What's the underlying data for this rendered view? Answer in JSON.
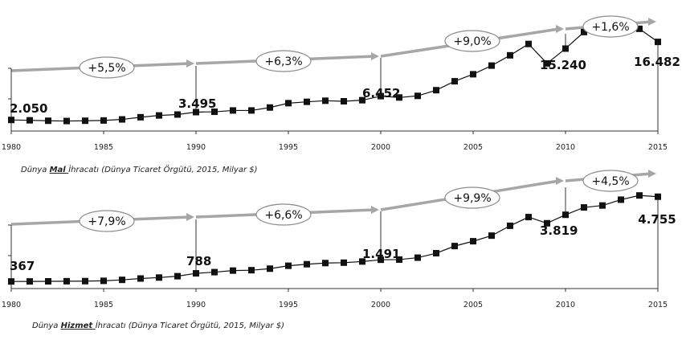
{
  "chart_data": [
    {
      "type": "line",
      "title": "",
      "caption": {
        "prefix": "Dünya ",
        "emph": "Mal ",
        "suffix": "İhracatı (Dünya Ticaret Örgütü, 2015, Milyar $)"
      },
      "x": [
        1980,
        1981,
        1982,
        1983,
        1984,
        1985,
        1986,
        1987,
        1988,
        1989,
        1990,
        1991,
        1992,
        1993,
        1994,
        1995,
        1996,
        1997,
        1998,
        1999,
        2000,
        2001,
        2002,
        2003,
        2004,
        2005,
        2006,
        2007,
        2008,
        2009,
        2010,
        2011,
        2012,
        2013,
        2014,
        2015
      ],
      "values": [
        2050,
        1980,
        1900,
        1850,
        1900,
        1950,
        2150,
        2550,
        2880,
        3050,
        3495,
        3560,
        3800,
        3800,
        4350,
        5150,
        5400,
        5600,
        5500,
        5700,
        6452,
        6200,
        6500,
        7550,
        9200,
        10500,
        12100,
        14000,
        16100,
        12500,
        15240,
        18300,
        18500,
        18800,
        18900,
        16482
      ],
      "xticks": [
        1980,
        1985,
        1990,
        1995,
        2000,
        2005,
        2010,
        2015
      ],
      "ylim": [
        0,
        22000
      ],
      "labels": [
        {
          "x": 1980,
          "text": "2.050"
        },
        {
          "x": 1990,
          "text": "3.495"
        },
        {
          "x": 2000,
          "text": "6.452"
        },
        {
          "x": 2010,
          "text": "15.240"
        },
        {
          "x": 2015,
          "text": "16.482"
        }
      ],
      "growth": [
        "+5,5%",
        "+6,3%",
        "+9,0%",
        "+1,6%"
      ]
    },
    {
      "type": "line",
      "title": "",
      "caption": {
        "prefix": "Dünya ",
        "emph": "Hizmet ",
        "suffix": "İhracatı (Dünya Ticaret Örgütü, 2015, Milyar $)"
      },
      "x": [
        1980,
        1981,
        1982,
        1983,
        1984,
        1985,
        1986,
        1987,
        1988,
        1989,
        1990,
        1991,
        1992,
        1993,
        1994,
        1995,
        1996,
        1997,
        1998,
        1999,
        2000,
        2001,
        2002,
        2003,
        2004,
        2005,
        2006,
        2007,
        2008,
        2009,
        2010,
        2011,
        2012,
        2013,
        2014,
        2015
      ],
      "values": [
        367,
        370,
        375,
        380,
        385,
        400,
        450,
        520,
        570,
        640,
        788,
        850,
        930,
        950,
        1030,
        1180,
        1260,
        1320,
        1340,
        1400,
        1491,
        1500,
        1600,
        1830,
        2200,
        2450,
        2740,
        3250,
        3700,
        3380,
        3819,
        4200,
        4300,
        4600,
        4820,
        4755
      ],
      "xticks": [
        1980,
        1985,
        1990,
        1995,
        2000,
        2005,
        2010,
        2015
      ],
      "ylim": [
        0,
        6200
      ],
      "labels": [
        {
          "x": 1980,
          "text": "367"
        },
        {
          "x": 1990,
          "text": "788"
        },
        {
          "x": 2000,
          "text": "1.491"
        },
        {
          "x": 2010,
          "text": "3.819"
        },
        {
          "x": 2015,
          "text": "4.755"
        }
      ],
      "growth": [
        "+7,9%",
        "+6,6%",
        "+9,9%",
        "+4,5%"
      ]
    }
  ]
}
